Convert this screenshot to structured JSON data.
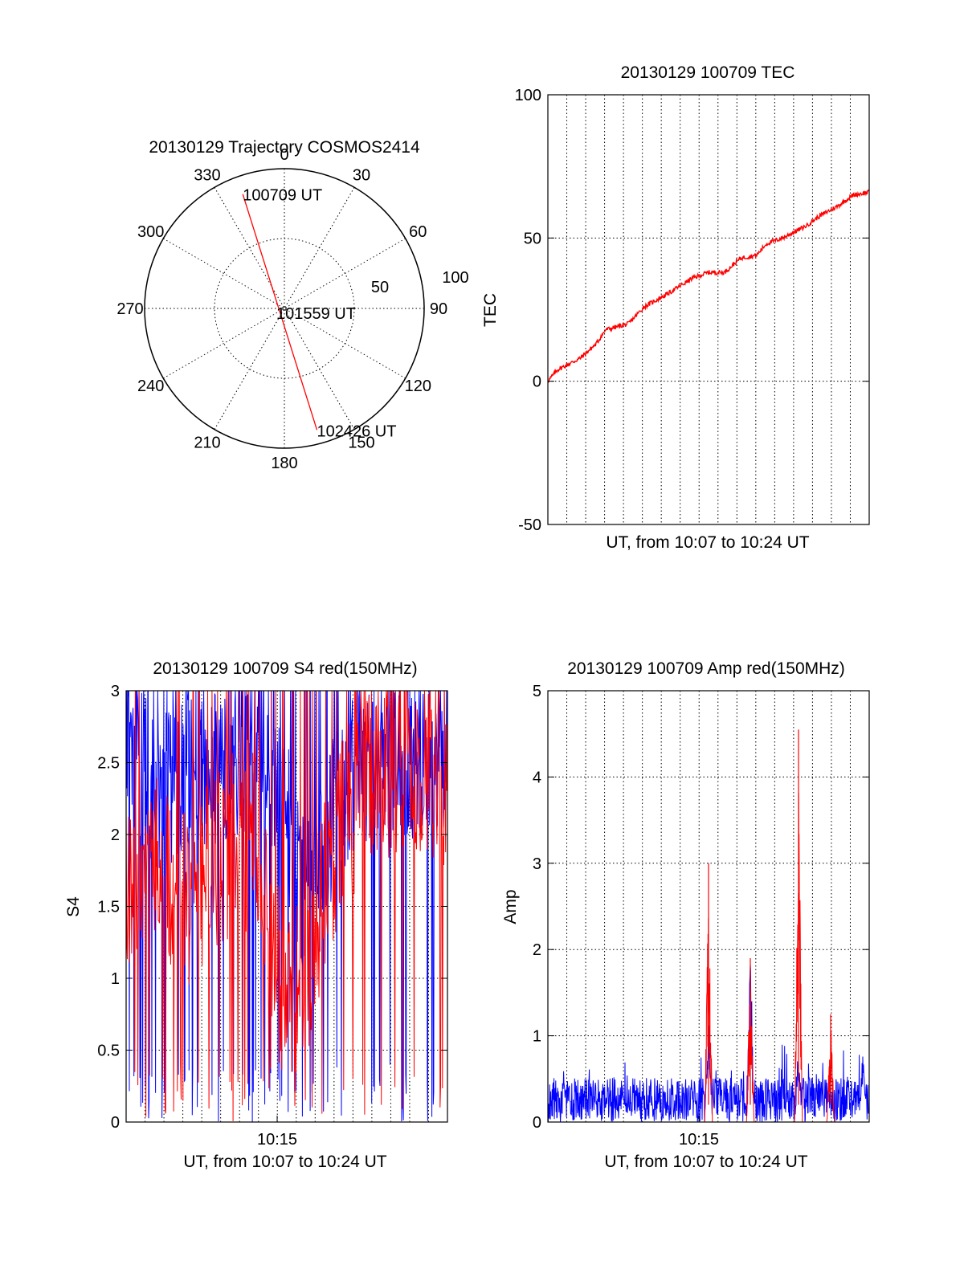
{
  "colors": {
    "primary": "#ff0000",
    "secondary": "#0000ff",
    "axes": "#000000"
  },
  "chart_data": [
    {
      "type": "polar",
      "title": "20130129 Trajectory COSMOS2414",
      "angle_labels": [
        "0",
        "30",
        "60",
        "90",
        "120",
        "150",
        "180",
        "210",
        "240",
        "270",
        "300",
        "330"
      ],
      "radial_labels": [
        "50",
        "100"
      ],
      "rlim": [
        0,
        100
      ],
      "grid": true,
      "trajectory": {
        "points": [
          {
            "azimuth_deg": 340,
            "radius": 87,
            "label": "100709 UT"
          },
          {
            "azimuth_deg": 180,
            "radius": 0,
            "label": "101559 UT"
          },
          {
            "azimuth_deg": 165,
            "radius": 90,
            "label": "102426 UT"
          }
        ]
      }
    },
    {
      "type": "line",
      "title": "20130129 100709 TEC",
      "xlabel": "UT, from 10:07 to 10:24 UT",
      "ylabel": "TEC",
      "ylim": [
        -50,
        100
      ],
      "yticks": [
        "100",
        "50",
        "0",
        "-50"
      ],
      "xlim": [
        0,
        1
      ],
      "grid": true,
      "series": [
        {
          "color": "red",
          "points": [
            [
              0,
              0
            ],
            [
              0.03,
              4
            ],
            [
              0.1,
              8
            ],
            [
              0.15,
              13
            ],
            [
              0.18,
              18
            ],
            [
              0.25,
              20
            ],
            [
              0.3,
              26
            ],
            [
              0.38,
              31
            ],
            [
              0.45,
              36
            ],
            [
              0.5,
              38
            ],
            [
              0.55,
              38
            ],
            [
              0.6,
              43
            ],
            [
              0.65,
              44
            ],
            [
              0.68,
              48
            ],
            [
              0.73,
              50
            ],
            [
              0.8,
              54
            ],
            [
              0.85,
              58
            ],
            [
              0.9,
              61
            ],
            [
              0.95,
              65
            ],
            [
              1,
              66
            ]
          ]
        }
      ]
    },
    {
      "type": "line",
      "title": "20130129 100709 S4 red(150MHz)",
      "xlabel": "UT, from 10:07 to 10:24 UT",
      "ylabel": "S4",
      "ylim": [
        0,
        3
      ],
      "yticks": [
        "3",
        "2.5",
        "2",
        "1.5",
        "1",
        "0.5",
        "0"
      ],
      "xtick_labels": [
        "10:15"
      ],
      "xlim": [
        0,
        1
      ],
      "grid": true,
      "series": [
        {
          "color": "blue",
          "description_points": [
            [
              0,
              2.6
            ],
            [
              0.1,
              2.3
            ],
            [
              0.2,
              2.4
            ],
            [
              0.3,
              2.5
            ],
            [
              0.4,
              2.6
            ],
            [
              0.45,
              2.4
            ],
            [
              0.5,
              2.1
            ],
            [
              0.55,
              1.6
            ],
            [
              0.6,
              1.7
            ],
            [
              0.65,
              2.2
            ],
            [
              0.7,
              2.4
            ],
            [
              0.8,
              2.6
            ],
            [
              0.9,
              2.5
            ],
            [
              1,
              2.6
            ]
          ]
        },
        {
          "color": "red",
          "description_points": [
            [
              0,
              1.6
            ],
            [
              0.1,
              1.8
            ],
            [
              0.2,
              1.5
            ],
            [
              0.3,
              1.9
            ],
            [
              0.4,
              2.0
            ],
            [
              0.45,
              1.4
            ],
            [
              0.48,
              1.0
            ],
            [
              0.52,
              0.8
            ],
            [
              0.56,
              1.0
            ],
            [
              0.6,
              1.4
            ],
            [
              0.65,
              1.9
            ],
            [
              0.7,
              2.2
            ],
            [
              0.8,
              2.4
            ],
            [
              0.9,
              2.5
            ],
            [
              1,
              2.4
            ]
          ]
        }
      ]
    },
    {
      "type": "line",
      "title": "20130129 100709 Amp red(150MHz)",
      "xlabel": "UT, from 10:07 to 10:24 UT",
      "ylabel": "Amp",
      "ylim": [
        0,
        5
      ],
      "yticks": [
        "5",
        "4",
        "3",
        "2",
        "1",
        "0"
      ],
      "xtick_labels": [
        "10:15"
      ],
      "xlim": [
        0,
        1
      ],
      "grid": true,
      "series": [
        {
          "color": "blue",
          "baseline": 0.3,
          "peaks": [
            [
              0.5,
              1.4
            ],
            [
              0.63,
              2.4
            ],
            [
              0.78,
              0.9
            ],
            [
              0.98,
              0.9
            ]
          ]
        },
        {
          "color": "red",
          "peaks": [
            [
              0.5,
              3.0
            ],
            [
              0.63,
              1.9
            ],
            [
              0.78,
              4.55
            ],
            [
              0.88,
              1.25
            ]
          ]
        }
      ]
    }
  ]
}
